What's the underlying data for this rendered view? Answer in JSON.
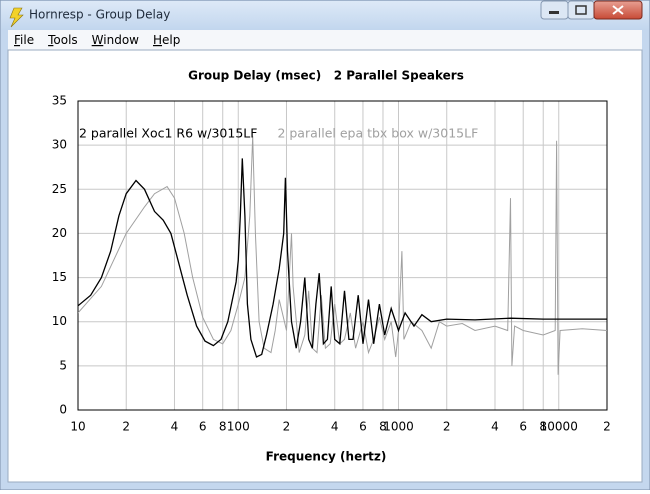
{
  "window": {
    "title": "Hornresp - Group Delay",
    "menu": [
      "File",
      "Tools",
      "Window",
      "Help"
    ]
  },
  "chart_data": {
    "type": "line",
    "title": "Group Delay (msec)   2 Parallel Speakers",
    "x_label": "Frequency (hertz)",
    "xscale": "log",
    "grid": true,
    "xlim": [
      10,
      20000
    ],
    "ylim": [
      0,
      35
    ],
    "xticks": [
      10,
      {
        "value": 20,
        "label": "2"
      },
      {
        "value": 40,
        "label": "4"
      },
      {
        "value": 60,
        "label": "6"
      },
      {
        "value": 80,
        "label": "8"
      },
      100,
      {
        "value": 200,
        "label": "2"
      },
      {
        "value": 400,
        "label": "4"
      },
      {
        "value": 600,
        "label": "6"
      },
      {
        "value": 800,
        "label": "8"
      },
      1000,
      {
        "value": 2000,
        "label": "2"
      },
      {
        "value": 4000,
        "label": "4"
      },
      {
        "value": 6000,
        "label": "6"
      },
      {
        "value": 8000,
        "label": "8"
      },
      10000,
      {
        "value": 20000,
        "label": "2"
      }
    ],
    "yticks": [
      0,
      5,
      10,
      15,
      20,
      25,
      30,
      35
    ],
    "series": [
      {
        "name": "2 parallel Xoc1 R6 w/3015LF",
        "color": "#000000",
        "x": [
          10,
          12,
          14,
          16,
          18,
          20,
          23,
          26,
          30,
          34,
          38,
          42,
          48,
          55,
          62,
          70,
          78,
          86,
          92,
          97,
          100,
          103,
          106,
          110,
          114,
          120,
          130,
          140,
          150,
          165,
          180,
          192,
          197,
          203,
          215,
          230,
          245,
          260,
          275,
          290,
          305,
          320,
          340,
          360,
          380,
          400,
          430,
          460,
          490,
          520,
          560,
          600,
          650,
          700,
          760,
          820,
          900,
          1000,
          1100,
          1250,
          1400,
          1600,
          2000,
          3000,
          5000,
          8000,
          20000
        ],
        "values": [
          11.8,
          13,
          15,
          18,
          22,
          24.5,
          26,
          25,
          22.5,
          21.5,
          20,
          17,
          13,
          9.5,
          7.8,
          7.3,
          8,
          10,
          12.5,
          14.5,
          17,
          22,
          28.5,
          22,
          12,
          8,
          6,
          6.3,
          8.5,
          12,
          16,
          20,
          26.3,
          18,
          10,
          7,
          10,
          15,
          8,
          7,
          12,
          15.5,
          7.5,
          8,
          14,
          8,
          7.5,
          13.5,
          8,
          8,
          13,
          7.5,
          12.5,
          7.5,
          12,
          8.5,
          11.5,
          9,
          11,
          9.5,
          10.8,
          10,
          10.3,
          10.2,
          10.4,
          10.3,
          10.3
        ]
      },
      {
        "name": "2 parallel epa tbx box w/3015LF",
        "color": "#a0a0a0",
        "x": [
          10,
          14,
          20,
          26,
          30,
          36,
          40,
          46,
          52,
          60,
          70,
          80,
          90,
          100,
          110,
          118,
          123,
          128,
          135,
          145,
          160,
          170,
          180,
          200,
          215,
          220,
          240,
          260,
          275,
          290,
          310,
          330,
          350,
          375,
          400,
          430,
          460,
          500,
          540,
          600,
          650,
          700,
          760,
          820,
          900,
          960,
          1000,
          1050,
          1080,
          1200,
          1400,
          1600,
          1800,
          2000,
          2500,
          3000,
          4000,
          4800,
          5000,
          5100,
          5300,
          6000,
          8000,
          9500,
          9700,
          9900,
          10200,
          14000,
          20000
        ],
        "values": [
          11,
          14,
          20,
          23,
          24.5,
          25.3,
          24,
          20,
          15,
          10.5,
          8,
          7.5,
          9,
          12,
          15,
          22,
          31,
          20,
          10,
          7,
          6.5,
          9,
          12.5,
          9,
          20,
          14,
          6.5,
          8.5,
          13.5,
          7,
          6.5,
          13,
          7,
          7.5,
          12,
          7.5,
          8,
          11,
          7,
          10,
          6.5,
          8,
          10.5,
          8,
          10,
          6,
          9,
          18,
          8,
          10,
          9,
          7,
          10,
          9.5,
          9.8,
          9,
          9.5,
          9,
          24,
          5,
          9.5,
          9,
          8.5,
          9,
          30.5,
          4,
          9,
          9.2,
          9
        ]
      }
    ]
  }
}
